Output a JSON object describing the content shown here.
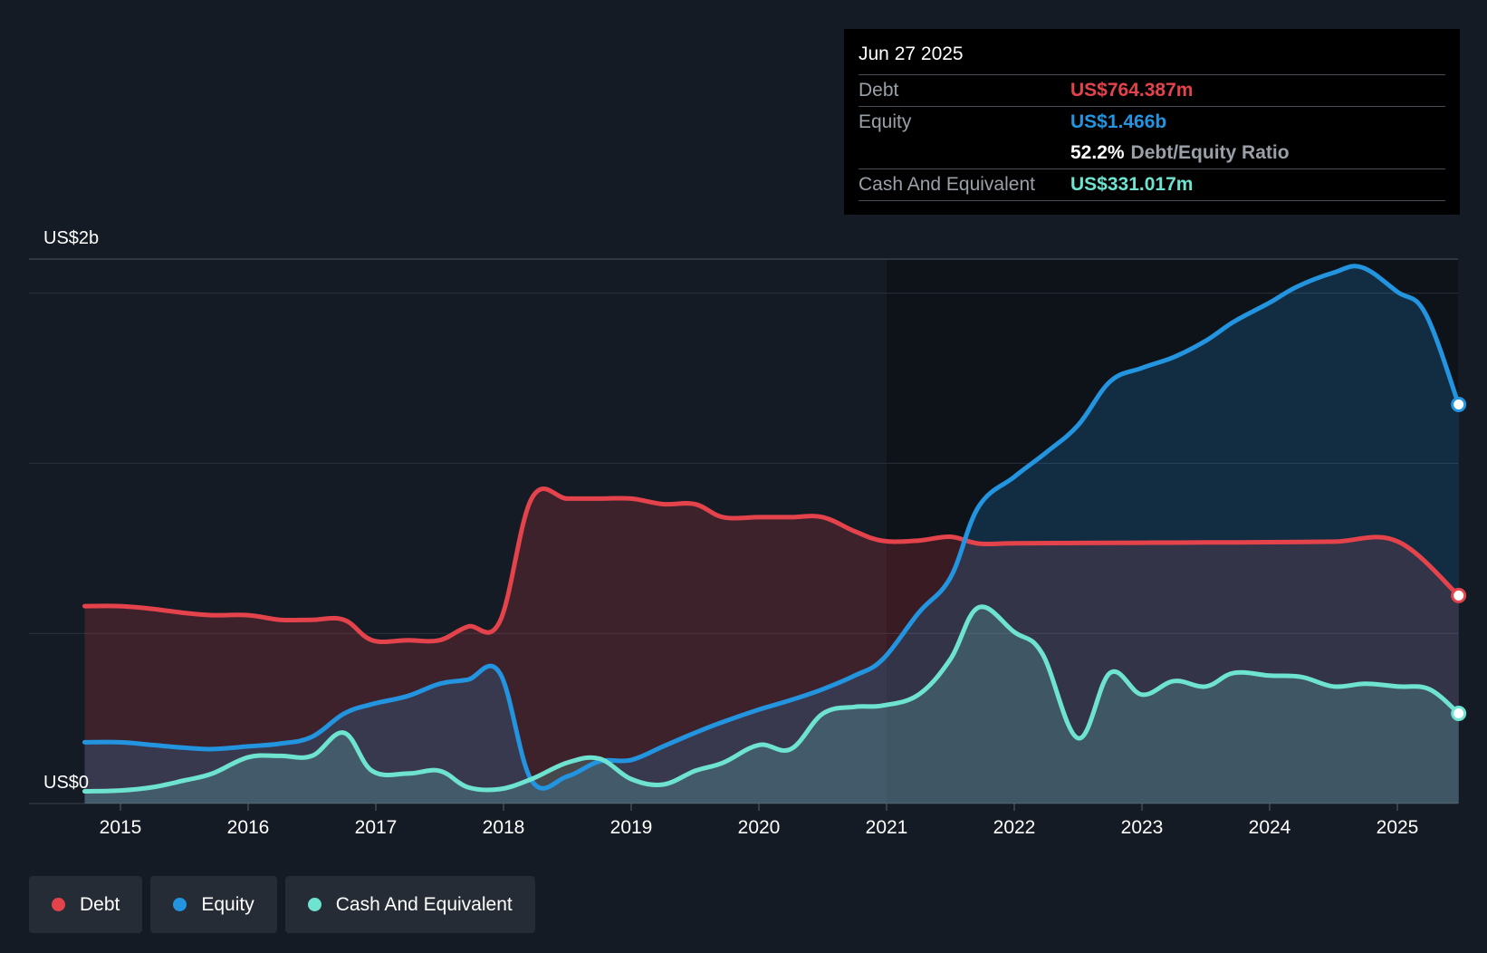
{
  "tooltip": {
    "date": "Jun 27 2025",
    "debt_label": "Debt",
    "debt_value": "US$764.387m",
    "equity_label": "Equity",
    "equity_value": "US$1.466b",
    "ratio_value": "52.2%",
    "ratio_label": "Debt/Equity Ratio",
    "cash_label": "Cash And Equivalent",
    "cash_value": "US$331.017m"
  },
  "legend": {
    "debt": "Debt",
    "equity": "Equity",
    "cash": "Cash And Equivalent"
  },
  "colors": {
    "debt": "#e5434b",
    "equity": "#2394df",
    "cash": "#6de3d0",
    "background": "#151b24",
    "highlight_bg": "#0e131a"
  },
  "chart_data": {
    "type": "area",
    "title": "",
    "xlabel": "",
    "ylabel": "",
    "ylim": [
      0,
      2.0
    ],
    "y_unit": "US$ billions",
    "y_axis_labels": [
      "US$2b",
      "US$0"
    ],
    "grid": true,
    "x_ticks": [
      "2015",
      "2016",
      "2017",
      "2018",
      "2019",
      "2020",
      "2021",
      "2022",
      "2023",
      "2024",
      "2025"
    ],
    "highlight_from": 2021.0,
    "series": [
      {
        "name": "Debt",
        "x": [
          2014.72,
          2015.0,
          2015.25,
          2015.5,
          2015.72,
          2016.0,
          2016.25,
          2016.5,
          2016.75,
          2016.97,
          2017.25,
          2017.5,
          2017.72,
          2017.97,
          2018.22,
          2018.5,
          2018.75,
          2019.0,
          2019.25,
          2019.5,
          2019.72,
          2020.0,
          2020.25,
          2020.5,
          2020.75,
          2020.97,
          2021.25,
          2021.5,
          2021.72,
          2022.0,
          2022.5,
          2023.0,
          2023.5,
          2024.0,
          2024.5,
          2025.0,
          2025.48
        ],
        "y": [
          0.725,
          0.725,
          0.715,
          0.7,
          0.692,
          0.692,
          0.675,
          0.675,
          0.675,
          0.6,
          0.6,
          0.6,
          0.65,
          0.668,
          1.12,
          1.12,
          1.12,
          1.12,
          1.1,
          1.1,
          1.052,
          1.052,
          1.052,
          1.052,
          1.0,
          0.965,
          0.966,
          0.98,
          0.955,
          0.956,
          0.957,
          0.958,
          0.959,
          0.96,
          0.962,
          0.963,
          0.764
        ]
      },
      {
        "name": "Equity",
        "x": [
          2014.72,
          2015.0,
          2015.25,
          2015.5,
          2015.72,
          2016.0,
          2016.25,
          2016.5,
          2016.75,
          2016.97,
          2017.25,
          2017.5,
          2017.72,
          2017.97,
          2018.22,
          2018.5,
          2018.75,
          2019.0,
          2019.25,
          2019.5,
          2019.72,
          2020.0,
          2020.25,
          2020.5,
          2020.75,
          2020.97,
          2021.25,
          2021.5,
          2021.72,
          2022.0,
          2022.25,
          2022.5,
          2022.75,
          2023.0,
          2023.25,
          2023.5,
          2023.72,
          2024.0,
          2024.22,
          2024.5,
          2024.72,
          2025.0,
          2025.22,
          2025.48
        ],
        "y": [
          0.225,
          0.225,
          0.215,
          0.205,
          0.2,
          0.21,
          0.22,
          0.245,
          0.33,
          0.365,
          0.395,
          0.44,
          0.455,
          0.48,
          0.085,
          0.1,
          0.155,
          0.16,
          0.21,
          0.26,
          0.3,
          0.345,
          0.38,
          0.42,
          0.47,
          0.53,
          0.7,
          0.83,
          1.09,
          1.2,
          1.29,
          1.39,
          1.55,
          1.6,
          1.64,
          1.7,
          1.77,
          1.84,
          1.9,
          1.95,
          1.97,
          1.88,
          1.8,
          1.466
        ]
      },
      {
        "name": "Cash And Equivalent",
        "x": [
          2014.72,
          2015.0,
          2015.25,
          2015.5,
          2015.72,
          2016.0,
          2016.25,
          2016.5,
          2016.75,
          2016.97,
          2017.25,
          2017.5,
          2017.72,
          2017.97,
          2018.22,
          2018.5,
          2018.75,
          2019.0,
          2019.25,
          2019.5,
          2019.72,
          2020.0,
          2020.25,
          2020.5,
          2020.75,
          2020.97,
          2021.25,
          2021.5,
          2021.72,
          2022.0,
          2022.22,
          2022.5,
          2022.75,
          2023.0,
          2023.25,
          2023.5,
          2023.72,
          2024.0,
          2024.25,
          2024.5,
          2024.75,
          2025.0,
          2025.25,
          2025.48
        ],
        "y": [
          0.045,
          0.048,
          0.06,
          0.085,
          0.11,
          0.17,
          0.175,
          0.175,
          0.26,
          0.12,
          0.11,
          0.12,
          0.06,
          0.053,
          0.09,
          0.15,
          0.165,
          0.09,
          0.07,
          0.12,
          0.15,
          0.215,
          0.2,
          0.33,
          0.355,
          0.36,
          0.4,
          0.53,
          0.72,
          0.63,
          0.55,
          0.24,
          0.48,
          0.4,
          0.45,
          0.43,
          0.48,
          0.47,
          0.465,
          0.43,
          0.44,
          0.43,
          0.42,
          0.331
        ]
      }
    ]
  }
}
